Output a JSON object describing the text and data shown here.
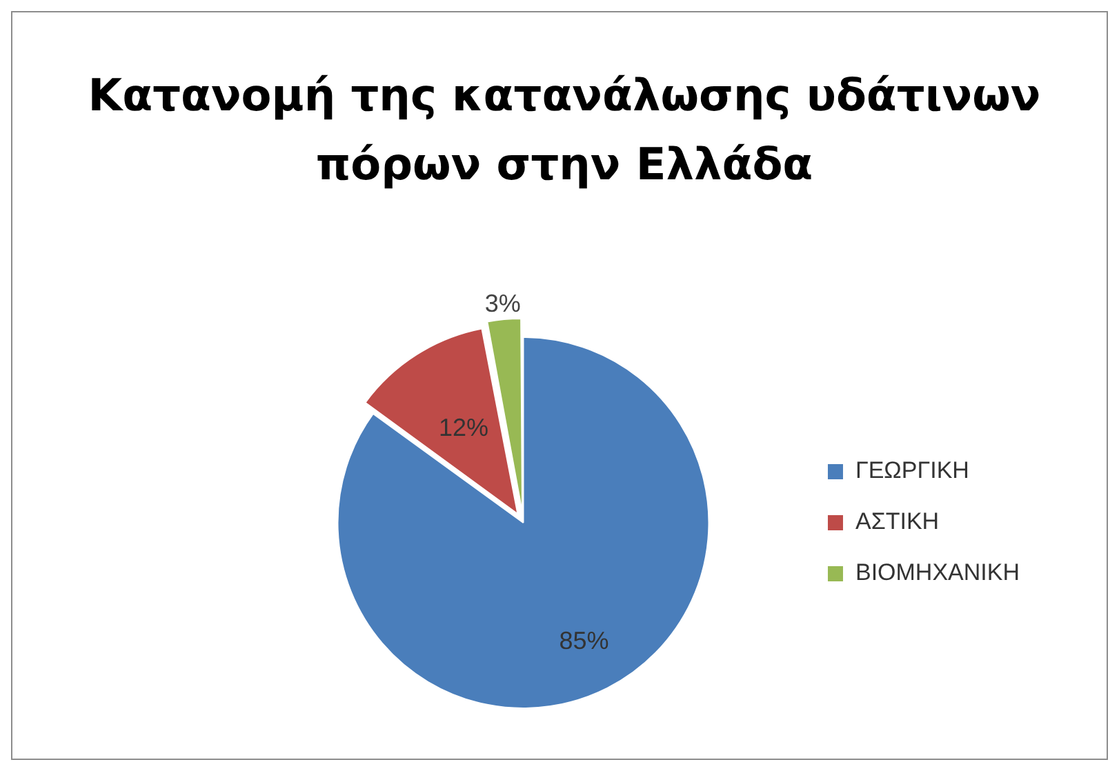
{
  "chart_data": {
    "type": "pie",
    "title": "Κατανομή της κατανάλωσης υδάτινων πόρων στην Ελλάδα",
    "categories": [
      "ΓΕΩΡΓΙΚΗ",
      "ΑΣΤΙΚΗ",
      "ΒΙΟΜΗΧΑΝΙΚΗ"
    ],
    "values": [
      85,
      12,
      3
    ],
    "colors": [
      "#4a7ebb",
      "#be4b48",
      "#98b954"
    ],
    "value_labels": [
      "85%",
      "12%",
      "3%"
    ],
    "legend": "right"
  }
}
